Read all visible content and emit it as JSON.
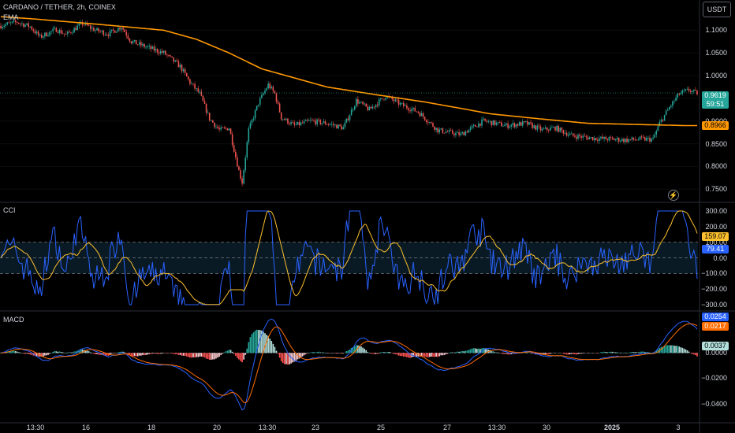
{
  "header": {
    "symbol": "CARDANO / TETHER, 2h, COINEX",
    "indicator": "EMA",
    "currency_button": "USDT"
  },
  "price_axis": {
    "ticks": [
      "1.1000",
      "1.0500",
      "1.0000",
      "0.9500",
      "0.9000",
      "0.8500",
      "0.8000",
      "0.7500"
    ],
    "tick_values": [
      1.1,
      1.05,
      1.0,
      0.95,
      0.9,
      0.85,
      0.8,
      0.75
    ],
    "last_price": "0.9619",
    "last_price_value": 0.9619,
    "countdown": "59:51",
    "ema_value": "0.8966",
    "ema_value_num": 0.8966
  },
  "cci": {
    "title": "CCI",
    "ticks": [
      "300.00",
      "200.00",
      "100.00",
      "0.00",
      "−100.00",
      "−200.00",
      "−300.00"
    ],
    "tick_values": [
      300,
      200,
      100,
      0,
      -100,
      -200,
      -300
    ],
    "band": [
      -100,
      100
    ],
    "ma_value": "159.07",
    "cci_value": "79.41"
  },
  "macd": {
    "title": "MACD",
    "ticks": [
      "0.0000",
      "−0.0200",
      "−0.0400"
    ],
    "tick_values": [
      0.0,
      -0.02,
      -0.04
    ],
    "macd_value": "0.0254",
    "signal_value": "0.0217",
    "hist_value": "0.0037"
  },
  "time_axis": {
    "labels": [
      "13:30",
      "16",
      "18",
      "20",
      "13:30",
      "23",
      "25",
      "27",
      "13:30",
      "30",
      "2025",
      "3"
    ]
  },
  "colors": {
    "up": "#26a69a",
    "down": "#ef5350",
    "ema": "#ff9800",
    "cci": "#2962ff",
    "cci_ma": "#fbc02d",
    "macd": "#2962ff",
    "signal": "#ff6d00",
    "hist_up_strong": "#26a69a",
    "hist_up_weak": "#b2dfdb",
    "hist_down_strong": "#ff5252",
    "hist_down_weak": "#ffcdd2"
  },
  "chart_data": {
    "type": "candlestick",
    "title": "CARDANO / TETHER, 2h, COINEX",
    "ylim": [
      0.74,
      1.13
    ],
    "ema_keypoints": [
      [
        0,
        1.13
      ],
      [
        20,
        1.125
      ],
      [
        60,
        1.113
      ],
      [
        100,
        1.1
      ],
      [
        120,
        1.08
      ],
      [
        140,
        1.05
      ],
      [
        160,
        1.015
      ],
      [
        180,
        0.995
      ],
      [
        200,
        0.975
      ],
      [
        230,
        0.958
      ],
      [
        260,
        0.942
      ],
      [
        285,
        0.926
      ],
      [
        300,
        0.916
      ],
      [
        330,
        0.905
      ],
      [
        360,
        0.895
      ],
      [
        384,
        0.893
      ],
      [
        420,
        0.89
      ]
    ],
    "close_keypoints": [
      [
        0,
        1.11
      ],
      [
        10,
        1.118
      ],
      [
        18,
        1.108
      ],
      [
        24,
        1.085
      ],
      [
        34,
        1.102
      ],
      [
        40,
        1.09
      ],
      [
        50,
        1.115
      ],
      [
        58,
        1.1
      ],
      [
        66,
        1.092
      ],
      [
        74,
        1.108
      ],
      [
        80,
        1.075
      ],
      [
        90,
        1.062
      ],
      [
        100,
        1.05
      ],
      [
        110,
        1.02
      ],
      [
        116,
        0.985
      ],
      [
        122,
        0.96
      ],
      [
        128,
        0.905
      ],
      [
        134,
        0.88
      ],
      [
        140,
        0.885
      ],
      [
        146,
        0.79
      ],
      [
        148,
        0.765
      ],
      [
        152,
        0.88
      ],
      [
        158,
        0.94
      ],
      [
        164,
        0.98
      ],
      [
        168,
        0.96
      ],
      [
        172,
        0.908
      ],
      [
        180,
        0.89
      ],
      [
        190,
        0.9
      ],
      [
        200,
        0.895
      ],
      [
        210,
        0.885
      ],
      [
        218,
        0.945
      ],
      [
        226,
        0.925
      ],
      [
        236,
        0.955
      ],
      [
        246,
        0.935
      ],
      [
        256,
        0.92
      ],
      [
        268,
        0.88
      ],
      [
        282,
        0.87
      ],
      [
        296,
        0.9
      ],
      [
        310,
        0.89
      ],
      [
        322,
        0.895
      ],
      [
        332,
        0.88
      ],
      [
        340,
        0.885
      ],
      [
        350,
        0.868
      ],
      [
        364,
        0.862
      ],
      [
        374,
        0.86
      ],
      [
        384,
        0.858
      ],
      [
        392,
        0.86
      ],
      [
        400,
        0.86
      ],
      [
        404,
        0.895
      ],
      [
        410,
        0.93
      ],
      [
        416,
        0.96
      ],
      [
        422,
        0.968
      ],
      [
        426,
        0.962
      ]
    ]
  }
}
